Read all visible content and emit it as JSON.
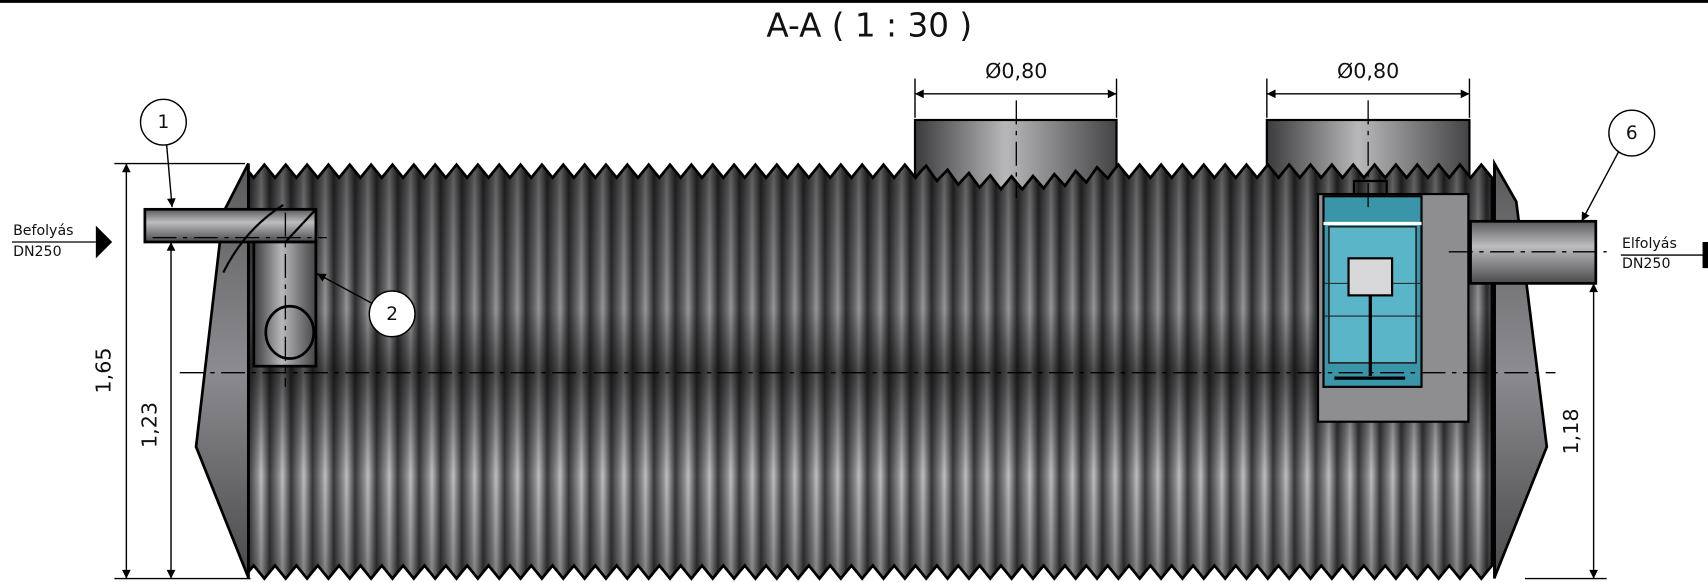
{
  "title": "A-A ( 1 : 30 )",
  "callouts": [
    {
      "label": "1"
    },
    {
      "label": "2"
    },
    {
      "label": "6"
    }
  ],
  "dimensions": [
    {
      "label": "Ø0,80"
    },
    {
      "label": "Ø0,80"
    },
    {
      "label": "1,65"
    },
    {
      "label": "1,23"
    },
    {
      "label": "1,18"
    }
  ],
  "inlet": {
    "label": "Befolyás",
    "size": "DN250"
  },
  "outlet": {
    "label": "Elfolyás",
    "size": "DN250"
  }
}
